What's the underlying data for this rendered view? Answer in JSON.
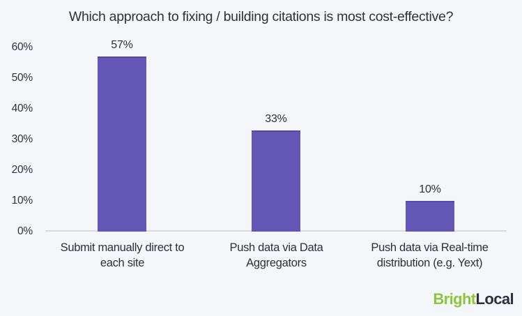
{
  "chart_data": {
    "type": "bar",
    "title": "Which approach to fixing / building citations is most cost-effective?",
    "categories": [
      "Submit manually direct to\neach site",
      "Push data via Data\nAggregators",
      "Push data via Real-time\ndistribution (e.g. Yext)"
    ],
    "values": [
      57,
      33,
      10
    ],
    "data_labels": [
      "57%",
      "33%",
      "10%"
    ],
    "yticks": [
      "0%",
      "10%",
      "20%",
      "30%",
      "40%",
      "50%",
      "60%"
    ],
    "ylim": [
      0,
      60
    ],
    "xlabel": "",
    "ylabel": "",
    "grid": false,
    "legend_position": "none",
    "bar_color": "#6456b4",
    "bar_top_edge_color": "#5748a3",
    "background_color": "#f5f6fa",
    "axis_line_color": "#d9dae0",
    "text_color": "#2e2e38"
  },
  "footer": {
    "logo_part1": "Bright",
    "logo_part2": "Local",
    "logo_green": "#8cc63e",
    "logo_dark": "#2e2e3e"
  }
}
